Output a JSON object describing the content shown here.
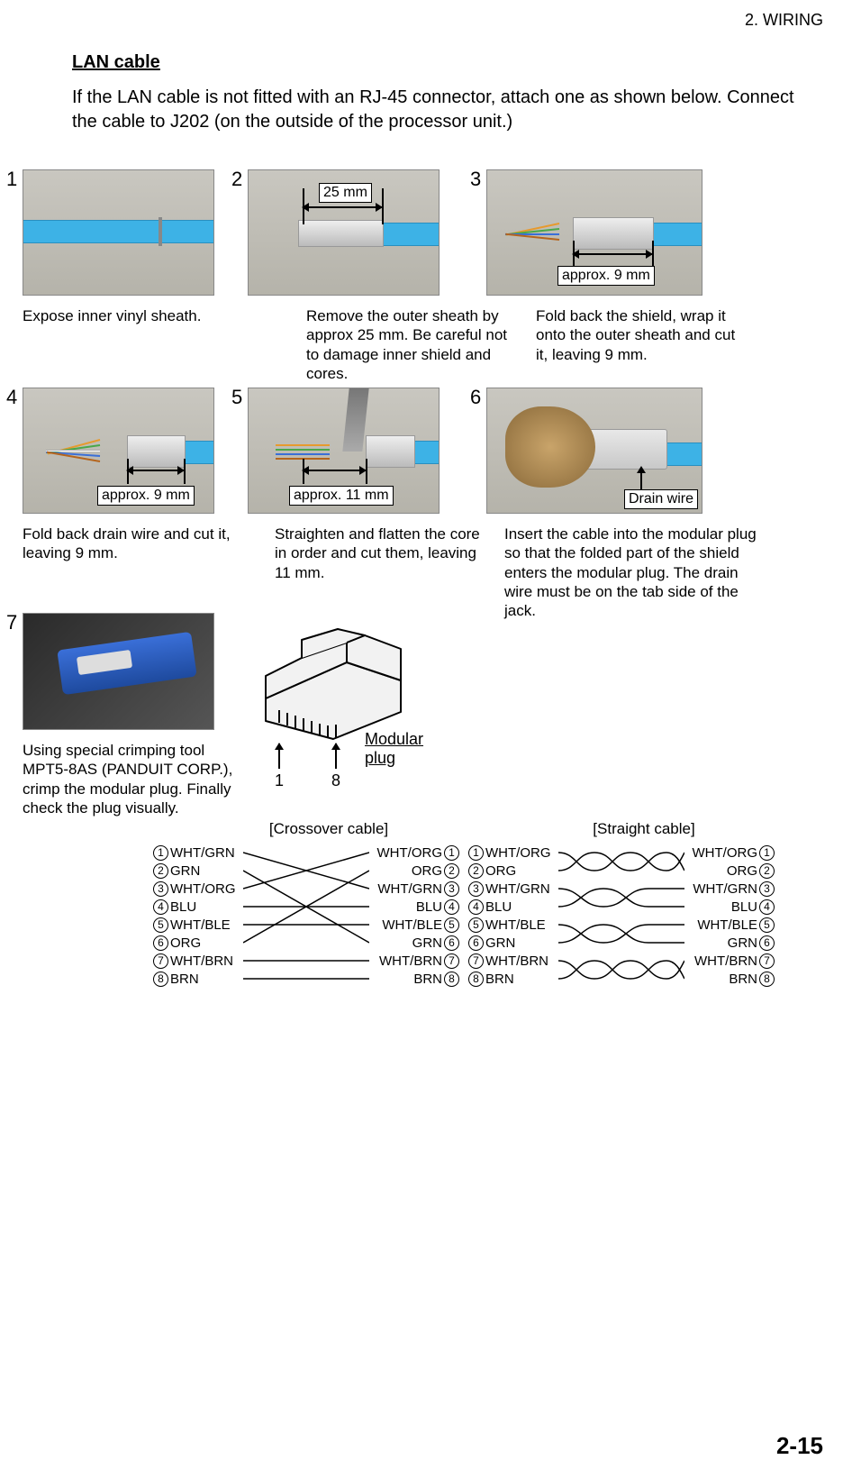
{
  "header": {
    "chapter": "2.  WIRING"
  },
  "title": "LAN cable",
  "intro": "If the LAN cable is not fitted with an RJ-45 connector, attach one as shown below. Connect the cable to J202 (on the outside of the processor unit.)",
  "steps": {
    "s1": {
      "num": "1",
      "caption": "Expose inner vinyl sheath."
    },
    "s2": {
      "num": "2",
      "caption": "Remove the outer sheath by approx 25 mm. Be careful not to damage inner shield and cores.",
      "label": "25 mm"
    },
    "s3": {
      "num": "3",
      "caption": "Fold back the shield, wrap it onto the outer sheath and cut it, leaving 9 mm.",
      "label": "approx. 9 mm"
    },
    "s4": {
      "num": "4",
      "caption": "Fold back drain wire and cut it, leaving 9 mm.",
      "label": "approx. 9 mm"
    },
    "s5": {
      "num": "5",
      "caption": "Straighten and flatten the core in order and cut them, leaving 11 mm.",
      "label": "approx. 11 mm"
    },
    "s6": {
      "num": "6",
      "caption": "Insert the cable into the modular plug so that the folded part of the shield enters the modular plug. The drain wire must be on the tab side of the jack.",
      "label": "Drain wire"
    },
    "s7": {
      "num": "7",
      "caption": "Using special crimping tool MPT5-8AS (PANDUIT CORP.), crimp the modular plug. Finally check the plug visually."
    }
  },
  "plug": {
    "label": "Modular plug",
    "pin1": "1",
    "pin8": "8"
  },
  "wiring": {
    "crossover": {
      "title": "[Crossover cable]",
      "left": [
        "WHT/GRN",
        "GRN",
        "WHT/ORG",
        "BLU",
        "WHT/BLE",
        "ORG",
        "WHT/BRN",
        "BRN"
      ],
      "right": [
        "WHT/ORG",
        "ORG",
        "WHT/GRN",
        "BLU",
        "WHT/BLE",
        "GRN",
        "WHT/BRN",
        "BRN"
      ]
    },
    "straight": {
      "title": "[Straight cable]",
      "left": [
        "WHT/ORG",
        "ORG",
        "WHT/GRN",
        "BLU",
        "WHT/BLE",
        "GRN",
        "WHT/BRN",
        "BRN"
      ],
      "right": [
        "WHT/ORG",
        "ORG",
        "WHT/GRN",
        "BLU",
        "WHT/BLE",
        "GRN",
        "WHT/BRN",
        "BRN"
      ]
    }
  },
  "page": "2-15",
  "colors": {
    "cable": "#3db2e6",
    "photo_bg_top": "#c9c7c0",
    "photo_bg_bot": "#b5b3aa",
    "wire_colors": [
      "#e69a2e",
      "#4aa84a",
      "#3a6fd8",
      "#b5651d",
      "#e69a2e",
      "#4aa84a",
      "#3a6fd8",
      "#b5651d"
    ]
  }
}
